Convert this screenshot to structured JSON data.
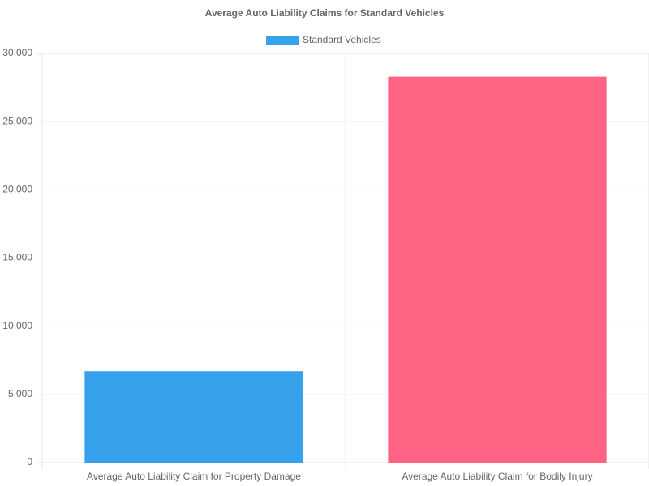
{
  "chart_data": {
    "type": "bar",
    "title": "Average Auto Liability Claims for Standard Vehicles",
    "categories": [
      "Average Auto Liability Claim for Property Damage",
      "Average Auto Liability Claim for Bodily Injury"
    ],
    "series": [
      {
        "name": "Standard Vehicles",
        "color": "#36a2eb",
        "colors": [
          "#36a2eb",
          "#ff6384"
        ],
        "values": [
          6700,
          28300
        ]
      }
    ],
    "ylim": [
      0,
      30000
    ],
    "yticks": [
      0,
      {
        "value": 5000,
        "label": "5,000"
      },
      {
        "value": 10000,
        "label": "10,000"
      },
      {
        "value": 15000,
        "label": "15,000"
      },
      {
        "value": 20000,
        "label": "20,000"
      },
      {
        "value": 25000,
        "label": "25,000"
      },
      {
        "value": 30000,
        "label": "30,000"
      }
    ],
    "grid": true,
    "legend": "top"
  }
}
